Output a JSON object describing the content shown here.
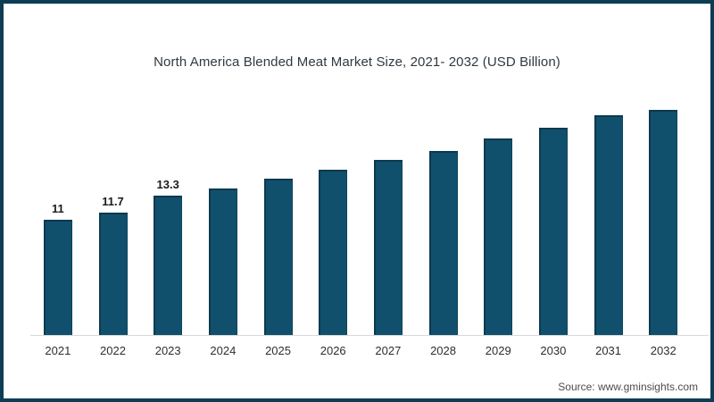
{
  "frame": {
    "border_color": "#0e3c54",
    "background_color": "#ffffff"
  },
  "chart_data": {
    "type": "bar",
    "title": "North America Blended Meat Market Size, 2021- 2032 (USD Billion)",
    "categories": [
      "2021",
      "2022",
      "2023",
      "2024",
      "2025",
      "2026",
      "2027",
      "2028",
      "2029",
      "2030",
      "2031",
      "2032"
    ],
    "values": [
      11,
      11.7,
      13.3,
      14,
      14.9,
      15.8,
      16.7,
      17.6,
      18.8,
      19.8,
      21,
      22.3
    ],
    "data_labels": [
      "11",
      "11.7",
      "13.3",
      "",
      "",
      "",
      "",
      "",
      "",
      "",
      "",
      ""
    ],
    "xlabel": "",
    "ylabel": "",
    "ylim": [
      0,
      23.2
    ],
    "grid": false,
    "legend": false,
    "bar_color": "#11506c",
    "bar_edge_color": "#0b3950",
    "axis_line_color": "#d9d9d9"
  },
  "footer": {
    "source_label": "Source: www.gminsights.com"
  }
}
